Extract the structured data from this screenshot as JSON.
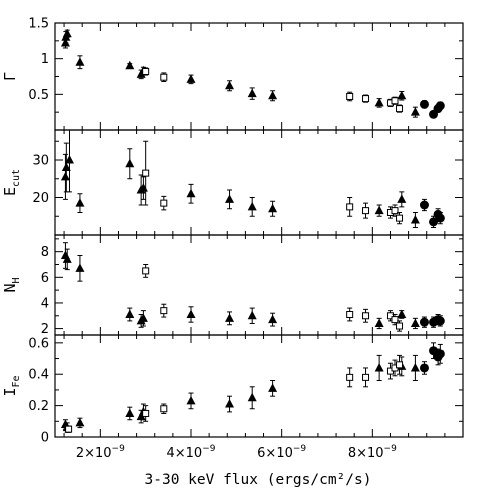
{
  "chart_data": {
    "type": "scatter",
    "x_axis": {
      "label": "3-30 keV flux (ergs/cm²/s)",
      "lim": [
        1e-09,
        1e-08
      ],
      "ticks": [
        2e-09,
        4e-09,
        6e-09,
        8e-09
      ],
      "tick_labels": [
        "2×10",
        "4×10",
        "6×10",
        "8×10"
      ],
      "tick_exponent": "−9"
    },
    "marker_types": [
      "filled triangle",
      "open square",
      "filled circle"
    ],
    "panels": [
      {
        "ylabel_main": "Γ",
        "ylabel_sub": "",
        "ylim": [
          0.0,
          1.5
        ],
        "yticks": [
          0.5,
          1.0,
          1.5
        ],
        "ytick_labels": [
          "0.5",
          "1",
          "1.5"
        ],
        "series": [
          {
            "marker": "triangle",
            "points": [
              [
                1.23e-09,
                1.22,
                0.07
              ],
              [
                1.24e-09,
                1.3,
                0.08
              ],
              [
                1.27e-09,
                1.35,
                0.05
              ],
              [
                1.55e-09,
                0.95,
                0.09
              ],
              [
                2.65e-09,
                0.9,
                0.03
              ],
              [
                2.9e-09,
                0.78,
                0.06
              ],
              [
                2.95e-09,
                0.83,
                0.05
              ],
              [
                4e-09,
                0.71,
                0.06
              ],
              [
                4.85e-09,
                0.62,
                0.07
              ],
              [
                5.35e-09,
                0.51,
                0.08
              ],
              [
                5.8e-09,
                0.48,
                0.07
              ],
              [
                8.15e-09,
                0.38,
                0.06
              ],
              [
                8.65e-09,
                0.48,
                0.06
              ],
              [
                8.95e-09,
                0.25,
                0.07
              ]
            ]
          },
          {
            "marker": "square",
            "points": [
              [
                3e-09,
                0.82,
                0.05
              ],
              [
                3.4e-09,
                0.74,
                0.06
              ],
              [
                7.5e-09,
                0.47,
                0.06
              ],
              [
                7.85e-09,
                0.44,
                0.05
              ],
              [
                8.4e-09,
                0.38,
                0.05
              ],
              [
                8.5e-09,
                0.41,
                0.05
              ],
              [
                8.6e-09,
                0.3,
                0.05
              ]
            ]
          },
          {
            "marker": "circle",
            "points": [
              [
                9.15e-09,
                0.36,
                0.05
              ],
              [
                9.35e-09,
                0.22,
                0.04
              ],
              [
                9.45e-09,
                0.3,
                0.05
              ],
              [
                9.5e-09,
                0.34,
                0.05
              ]
            ]
          }
        ]
      },
      {
        "ylabel_main": "E",
        "ylabel_sub": "cut",
        "ylim": [
          10,
          38
        ],
        "yticks": [
          20,
          30
        ],
        "ytick_labels": [
          "20",
          "30"
        ],
        "series": [
          {
            "marker": "triangle",
            "points": [
              [
                1.23e-09,
                25.5,
                6.0
              ],
              [
                1.25e-09,
                28.0,
                6.5
              ],
              [
                1.32e-09,
                30.0,
                8.5
              ],
              [
                1.55e-09,
                18.5,
                2.5
              ],
              [
                2.65e-09,
                29.0,
                4.0
              ],
              [
                2.9e-09,
                22.0,
                4.0
              ],
              [
                2.95e-09,
                22.5,
                3.0
              ],
              [
                4e-09,
                21.0,
                2.5
              ],
              [
                4.85e-09,
                19.5,
                2.5
              ],
              [
                5.35e-09,
                17.5,
                2.5
              ],
              [
                5.8e-09,
                17.0,
                2.0
              ],
              [
                8.15e-09,
                16.5,
                1.5
              ],
              [
                8.65e-09,
                19.5,
                2.0
              ],
              [
                8.95e-09,
                14.0,
                2.0
              ]
            ]
          },
          {
            "marker": "square",
            "points": [
              [
                3e-09,
                26.5,
                8.5
              ],
              [
                3.4e-09,
                18.5,
                1.8
              ],
              [
                7.5e-09,
                17.5,
                2.5
              ],
              [
                7.85e-09,
                16.5,
                2.0
              ],
              [
                8.4e-09,
                16.0,
                1.5
              ],
              [
                8.5e-09,
                16.5,
                1.5
              ],
              [
                8.6e-09,
                14.5,
                1.5
              ]
            ]
          },
          {
            "marker": "circle",
            "points": [
              [
                9.15e-09,
                18.0,
                1.5
              ],
              [
                9.35e-09,
                13.5,
                1.5
              ],
              [
                9.45e-09,
                15.5,
                1.5
              ],
              [
                9.5e-09,
                14.5,
                1.5
              ]
            ]
          }
        ]
      },
      {
        "ylabel_main": "N",
        "ylabel_sub": "H",
        "ylim": [
          1.5,
          9.3
        ],
        "yticks": [
          2,
          4,
          6,
          8
        ],
        "ytick_labels": [
          "2",
          "4",
          "6",
          "8"
        ],
        "series": [
          {
            "marker": "triangle",
            "points": [
              [
                1.23e-09,
                7.7,
                1.0
              ],
              [
                1.27e-09,
                7.4,
                0.8
              ],
              [
                1.55e-09,
                6.7,
                1.0
              ],
              [
                2.65e-09,
                3.1,
                0.5
              ],
              [
                2.9e-09,
                2.6,
                0.5
              ],
              [
                2.95e-09,
                2.8,
                0.6
              ],
              [
                4e-09,
                3.1,
                0.6
              ],
              [
                4.85e-09,
                2.8,
                0.5
              ],
              [
                5.35e-09,
                3.0,
                0.6
              ],
              [
                5.8e-09,
                2.7,
                0.5
              ],
              [
                8.15e-09,
                2.4,
                0.4
              ],
              [
                8.65e-09,
                3.1,
                0.3
              ],
              [
                8.95e-09,
                2.4,
                0.4
              ]
            ]
          },
          {
            "marker": "square",
            "points": [
              [
                3e-09,
                6.5,
                0.5
              ],
              [
                3.4e-09,
                3.4,
                0.5
              ],
              [
                7.5e-09,
                3.1,
                0.5
              ],
              [
                7.85e-09,
                3.0,
                0.5
              ],
              [
                8.4e-09,
                3.0,
                0.4
              ],
              [
                8.5e-09,
                2.7,
                0.4
              ],
              [
                8.6e-09,
                2.2,
                0.4
              ]
            ]
          },
          {
            "marker": "circle",
            "points": [
              [
                9.15e-09,
                2.5,
                0.4
              ],
              [
                9.35e-09,
                2.5,
                0.4
              ],
              [
                9.45e-09,
                2.7,
                0.4
              ],
              [
                9.5e-09,
                2.6,
                0.4
              ]
            ]
          }
        ]
      },
      {
        "ylabel_main": "I",
        "ylabel_sub": "Fe",
        "ylim": [
          0.0,
          0.65
        ],
        "yticks": [
          0,
          0.2,
          0.4,
          0.6
        ],
        "ytick_labels": [
          "0",
          "0.2",
          "0.4",
          "0.6"
        ],
        "series": [
          {
            "marker": "triangle",
            "points": [
              [
                1.23e-09,
                0.08,
                0.03
              ],
              [
                1.27e-09,
                0.06,
                0.03
              ],
              [
                1.55e-09,
                0.09,
                0.03
              ],
              [
                2.65e-09,
                0.15,
                0.04
              ],
              [
                2.9e-09,
                0.13,
                0.04
              ],
              [
                2.95e-09,
                0.16,
                0.05
              ],
              [
                4e-09,
                0.23,
                0.05
              ],
              [
                4.85e-09,
                0.21,
                0.05
              ],
              [
                5.35e-09,
                0.25,
                0.07
              ],
              [
                5.8e-09,
                0.31,
                0.05
              ],
              [
                8.15e-09,
                0.44,
                0.08
              ],
              [
                8.65e-09,
                0.45,
                0.06
              ],
              [
                8.95e-09,
                0.44,
                0.08
              ]
            ]
          },
          {
            "marker": "square",
            "points": [
              [
                1.3e-09,
                0.05,
                0.02
              ],
              [
                3e-09,
                0.15,
                0.05
              ],
              [
                3.4e-09,
                0.18,
                0.03
              ],
              [
                7.5e-09,
                0.38,
                0.06
              ],
              [
                7.85e-09,
                0.38,
                0.06
              ],
              [
                8.4e-09,
                0.42,
                0.05
              ],
              [
                8.5e-09,
                0.44,
                0.05
              ],
              [
                8.6e-09,
                0.46,
                0.06
              ]
            ]
          },
          {
            "marker": "circle",
            "points": [
              [
                9.15e-09,
                0.44,
                0.04
              ],
              [
                9.35e-09,
                0.55,
                0.05
              ],
              [
                9.45e-09,
                0.51,
                0.05
              ],
              [
                9.5e-09,
                0.53,
                0.06
              ]
            ]
          }
        ]
      }
    ]
  }
}
